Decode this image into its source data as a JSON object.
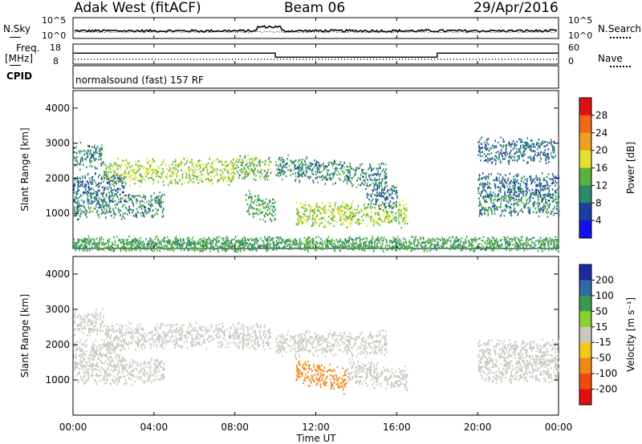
{
  "header": {
    "station": "Adak West (fitACF)",
    "beam": "Beam 06",
    "date": "29/Apr/2016"
  },
  "noise_panel": {
    "left_label": "N.Sky",
    "right_label": "N.Search",
    "left_ticks": [
      "10^5",
      "10^0"
    ],
    "right_ticks": [
      "10^5",
      "10^0"
    ]
  },
  "freq_panel": {
    "left_label_line1": "Freq.",
    "left_label_line2": "[MHz]",
    "right_label": "Nave",
    "left_ticks": [
      "18",
      "8"
    ],
    "right_ticks": [
      "60",
      "0"
    ],
    "cpid_label": "CPID",
    "cpid_text": "normalsound (fast) 157 RF"
  },
  "chart_data": [
    {
      "type": "line",
      "name": "noise",
      "series": [
        {
          "name": "N.Sky",
          "style": "solid"
        },
        {
          "name": "N.Search",
          "style": "dotted"
        }
      ]
    },
    {
      "type": "line",
      "name": "frequency-nave",
      "x": [
        "00:00",
        "10:00",
        "10:00",
        "18:00",
        "18:00",
        "24:00"
      ],
      "series": [
        {
          "name": "Freq. [MHz]",
          "values": [
            13.5,
            13.5,
            11.5,
            11.5,
            13.5,
            13.5
          ]
        },
        {
          "name": "Nave",
          "values": [
            15,
            15,
            15,
            15,
            15,
            15
          ]
        }
      ],
      "ylim": [
        8,
        18
      ]
    },
    {
      "type": "heatmap",
      "name": "power",
      "ylabel": "Slant Range [km]",
      "yticks": [
        "1000",
        "2000",
        "3000",
        "4000"
      ],
      "ylim": [
        0,
        4500
      ],
      "colorbar_label": "Power [dB]",
      "colorbar_ticks": [
        "4",
        "8",
        "12",
        "16",
        "20",
        "24",
        "28"
      ],
      "colorbar_colors": [
        "#1010f0",
        "#1c3f9e",
        "#2a8a6a",
        "#5ab23c",
        "#e5e030",
        "#f0a020",
        "#f06818",
        "#e01010"
      ],
      "features": [
        {
          "start": "00:00",
          "end": "01:30",
          "range_km": 2650,
          "level": 8
        },
        {
          "start": "01:30",
          "end": "08:00",
          "range_km": 2200,
          "level": 14
        },
        {
          "start": "08:00",
          "end": "09:45",
          "range_km": 2350,
          "level": 12
        },
        {
          "start": "00:00",
          "end": "02:30",
          "range_km": 1800,
          "level": 6
        },
        {
          "start": "00:00",
          "end": "04:30",
          "range_km": 1250,
          "level": 8
        },
        {
          "start": "08:30",
          "end": "10:00",
          "range_km": 1050,
          "level": 10
        },
        {
          "start": "10:00",
          "end": "15:30",
          "range_km": 2050,
          "level": 8
        },
        {
          "start": "11:00",
          "end": "16:30",
          "range_km": 1000,
          "level": 14
        },
        {
          "start": "14:30",
          "end": "16:00",
          "range_km": 1500,
          "level": 6
        },
        {
          "start": "20:00",
          "end": "23:50",
          "range_km": 2800,
          "level": 6
        },
        {
          "start": "20:00",
          "end": "24:00",
          "range_km": 1800,
          "level": 6
        },
        {
          "start": "20:00",
          "end": "24:00",
          "range_km": 1300,
          "level": 8
        },
        {
          "start": "00:00",
          "end": "24:00",
          "range_km": 150,
          "level": 10
        }
      ]
    },
    {
      "type": "heatmap",
      "name": "velocity",
      "ylabel": "Slant Range [km]",
      "yticks": [
        "1000",
        "2000",
        "3000",
        "4000"
      ],
      "ylim": [
        0,
        4500
      ],
      "xlabel": "Time UT",
      "xticks": [
        "00:00",
        "04:00",
        "08:00",
        "12:00",
        "16:00",
        "20:00",
        "00:00"
      ],
      "colorbar_label": "Velocity [m s^-1]",
      "colorbar_ticks": [
        "200",
        "100",
        "50",
        "15",
        "-15",
        "-50",
        "-100",
        "-200"
      ],
      "colorbar_colors": [
        "#1c2aa0",
        "#2c6aa8",
        "#3c9a50",
        "#8ad030",
        "#c8c8c0",
        "#f0c820",
        "#f08818",
        "#f04a10",
        "#e01010"
      ],
      "features": [
        {
          "start": "00:00",
          "end": "01:30",
          "range_km": 2650,
          "velocity": 0
        },
        {
          "start": "01:30",
          "end": "09:45",
          "range_km": 2250,
          "velocity": 0
        },
        {
          "start": "00:00",
          "end": "02:30",
          "range_km": 1800,
          "velocity": 0
        },
        {
          "start": "00:00",
          "end": "04:30",
          "range_km": 1250,
          "velocity": 0
        },
        {
          "start": "10:00",
          "end": "15:30",
          "range_km": 2050,
          "velocity": 0
        },
        {
          "start": "11:00",
          "end": "13:30",
          "range_km": 1000,
          "velocity": -60
        },
        {
          "start": "13:30",
          "end": "16:30",
          "range_km": 1000,
          "velocity": 0
        },
        {
          "start": "20:00",
          "end": "24:00",
          "range_km": 1300,
          "velocity": 0
        },
        {
          "start": "20:00",
          "end": "24:00",
          "range_km": 1800,
          "velocity": 0
        }
      ]
    }
  ]
}
